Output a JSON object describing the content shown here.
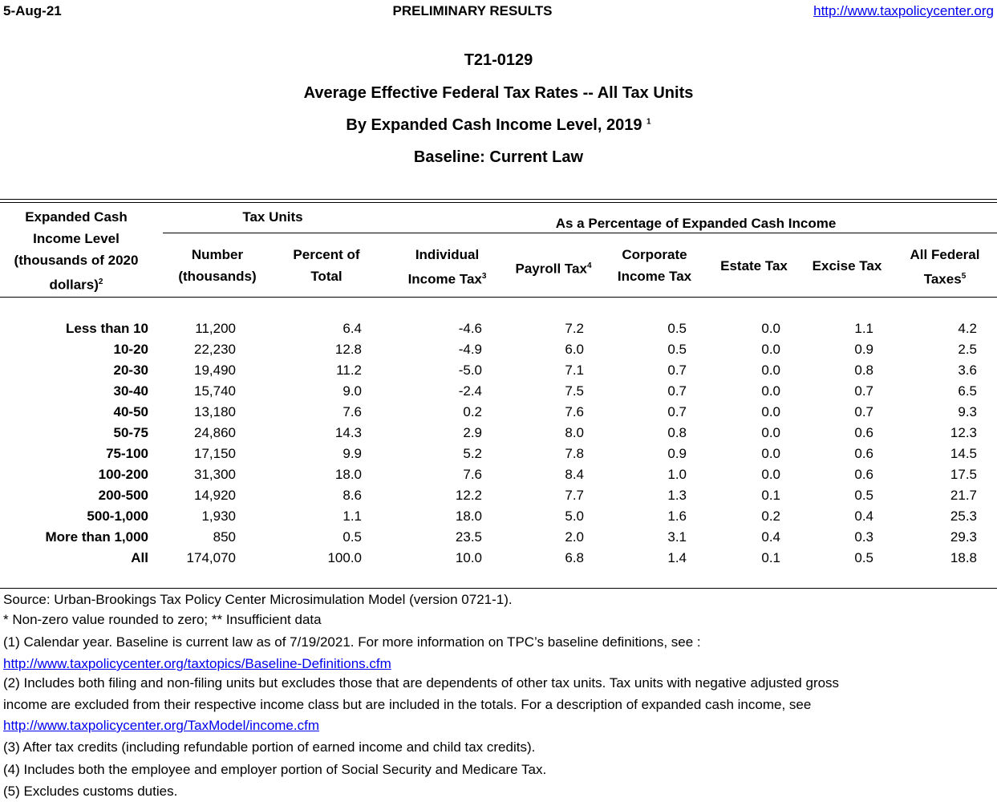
{
  "header": {
    "date": "5-Aug-21",
    "status": "PRELIMINARY RESULTS",
    "url": "http://www.taxpolicycenter.org"
  },
  "titles": {
    "id": "T21-0129",
    "title": "Average Effective Federal Tax Rates -- All Tax Units",
    "subtitle": "By Expanded Cash Income Level, 2019",
    "subtitle_note": "1",
    "baseline": "Baseline: Current Law"
  },
  "columns": {
    "income_level": {
      "line1": "Expanded Cash",
      "line2": "Income Level",
      "line3": "(thousands of 2020",
      "line4": "dollars)",
      "note": "2"
    },
    "tax_units": "Tax Units",
    "pct_group": "As a Percentage of Expanded Cash Income",
    "number": {
      "line1": "Number",
      "line2": "(thousands)"
    },
    "percent": {
      "line1": "Percent of",
      "line2": "Total"
    },
    "individual": {
      "line1": "Individual",
      "line2": "Income Tax",
      "note": "3"
    },
    "payroll": {
      "line1": "Payroll Tax",
      "note": "4"
    },
    "corporate": {
      "line1": "Corporate",
      "line2": "Income Tax"
    },
    "estate": {
      "line1": "Estate Tax"
    },
    "excise": {
      "line1": "Excise Tax"
    },
    "all": {
      "line1": "All Federal",
      "line2": "Taxes",
      "note": "5"
    }
  },
  "rows": [
    [
      "Less than 10",
      "11,200",
      "6.4",
      "-4.6",
      "7.2",
      "0.5",
      "0.0",
      "1.1",
      "4.2"
    ],
    [
      "10-20",
      "22,230",
      "12.8",
      "-4.9",
      "6.0",
      "0.5",
      "0.0",
      "0.9",
      "2.5"
    ],
    [
      "20-30",
      "19,490",
      "11.2",
      "-5.0",
      "7.1",
      "0.7",
      "0.0",
      "0.8",
      "3.6"
    ],
    [
      "30-40",
      "15,740",
      "9.0",
      "-2.4",
      "7.5",
      "0.7",
      "0.0",
      "0.7",
      "6.5"
    ],
    [
      "40-50",
      "13,180",
      "7.6",
      "0.2",
      "7.6",
      "0.7",
      "0.0",
      "0.7",
      "9.3"
    ],
    [
      "50-75",
      "24,860",
      "14.3",
      "2.9",
      "8.0",
      "0.8",
      "0.0",
      "0.6",
      "12.3"
    ],
    [
      "75-100",
      "17,150",
      "9.9",
      "5.2",
      "7.8",
      "0.9",
      "0.0",
      "0.6",
      "14.5"
    ],
    [
      "100-200",
      "31,300",
      "18.0",
      "7.6",
      "8.4",
      "1.0",
      "0.0",
      "0.6",
      "17.5"
    ],
    [
      "200-500",
      "14,920",
      "8.6",
      "12.2",
      "7.7",
      "1.3",
      "0.1",
      "0.5",
      "21.7"
    ],
    [
      "500-1,000",
      "1,930",
      "1.1",
      "18.0",
      "5.0",
      "1.6",
      "0.2",
      "0.4",
      "25.3"
    ],
    [
      "More than 1,000",
      "850",
      "0.5",
      "23.5",
      "2.0",
      "3.1",
      "0.4",
      "0.3",
      "29.3"
    ],
    [
      "All",
      "174,070",
      "100.0",
      "10.0",
      "6.8",
      "1.4",
      "0.1",
      "0.5",
      "18.8"
    ]
  ],
  "footnotes": {
    "source": "Source: Urban-Brookings Tax Policy Center Microsimulation Model (version 0721-1).",
    "legend": "* Non-zero value rounded to zero; ** Insufficient data",
    "n1": "(1) Calendar year. Baseline is current law as of 7/19/2021. For more information on TPC’s baseline definitions, see :",
    "n1_link": "http://www.taxpolicycenter.org/taxtopics/Baseline-Definitions.cfm",
    "n2a": "(2) Includes both filing and non-filing units but excludes those that are dependents of other tax units. Tax units with negative adjusted gross",
    "n2b": "income are excluded from their respective income class but are included in the totals. For a description of expanded cash income, see",
    "n2_link": "http://www.taxpolicycenter.org/TaxModel/income.cfm",
    "n3": "(3) After tax credits (including refundable portion of earned income and child tax credits).",
    "n4": "(4) Includes both the employee and employer portion of Social Security and Medicare Tax.",
    "n5": "(5) Excludes customs duties."
  }
}
